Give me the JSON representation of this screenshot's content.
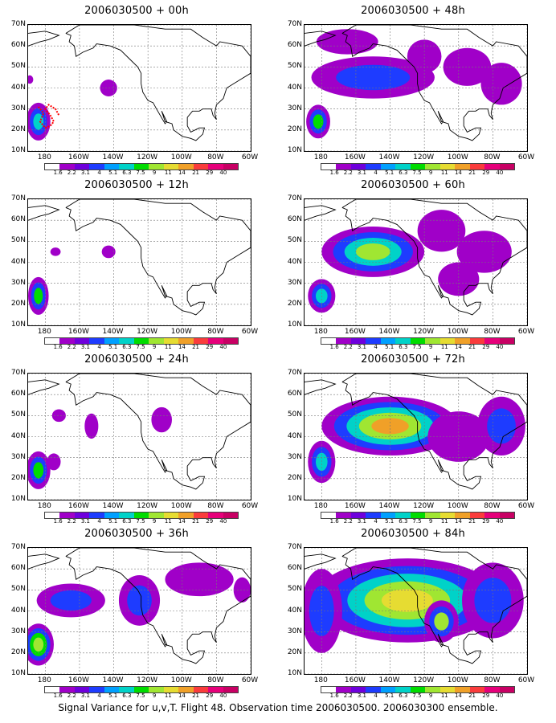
{
  "figure": {
    "caption": "Signal Variance for u,v,T. Flight 48. Observation time 2006030500. 2006030300 ensemble."
  },
  "axes": {
    "lat_labels": [
      "70N",
      "60N",
      "50N",
      "40N",
      "30N",
      "20N",
      "10N"
    ],
    "lat_values": [
      70,
      60,
      50,
      40,
      30,
      20,
      10
    ],
    "lon_labels": [
      "180",
      "160W",
      "140W",
      "120W",
      "100W",
      "80W",
      "60W"
    ],
    "lon_values": [
      -180,
      -160,
      -140,
      -120,
      -100,
      -80,
      -60
    ],
    "lon_range": [
      -190,
      -60
    ],
    "lat_range": [
      10,
      70
    ]
  },
  "colorbar": {
    "labels": [
      "1.6",
      "2.2",
      "3.1",
      "4",
      "5.1",
      "6.3",
      "7.5",
      "9",
      "11",
      "14",
      "21",
      "29",
      "40"
    ],
    "colors": [
      "#ffffff",
      "#a000c8",
      "#6e00dc",
      "#1e3cff",
      "#00a0ff",
      "#00d2c8",
      "#00dc00",
      "#a0e632",
      "#e6dc32",
      "#f0a028",
      "#fa3c3c",
      "#e6007a",
      "#c80064"
    ]
  },
  "panels": [
    {
      "title": "2006030500 + 00h",
      "column": 0,
      "row": 0
    },
    {
      "title": "2006030500 + 48h",
      "column": 1,
      "row": 0
    },
    {
      "title": "2006030500 + 12h",
      "column": 0,
      "row": 1
    },
    {
      "title": "2006030500 + 60h",
      "column": 1,
      "row": 1
    },
    {
      "title": "2006030500 + 24h",
      "column": 0,
      "row": 2
    },
    {
      "title": "2006030500 + 72h",
      "column": 1,
      "row": 2
    },
    {
      "title": "2006030500 + 36h",
      "column": 0,
      "row": 3
    },
    {
      "title": "2006030500 + 84h",
      "column": 1,
      "row": 3
    }
  ]
}
